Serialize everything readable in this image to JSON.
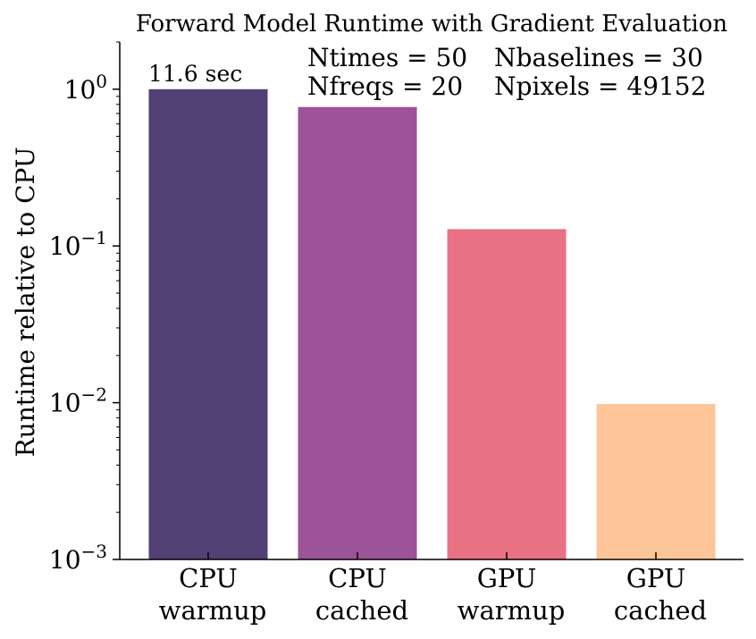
{
  "chart_data": {
    "type": "bar",
    "title": "Forward Model Runtime with Gradient Evaluation",
    "ylabel": "Runtime relative to CPU",
    "xlabel": "",
    "yscale": "log",
    "ylim": [
      0.001,
      2.0
    ],
    "categories": [
      [
        "CPU",
        "warmup"
      ],
      [
        "CPU",
        "cached"
      ],
      [
        "GPU",
        "warmup"
      ],
      [
        "GPU",
        "cached"
      ]
    ],
    "values": [
      1.0,
      0.77,
      0.128,
      0.0098
    ],
    "colors": [
      "#524174",
      "#9c5397",
      "#e87183",
      "#fdc598"
    ],
    "yticks": [
      {
        "value": 1,
        "base": "10",
        "exp": "0"
      },
      {
        "value": 0.1,
        "base": "10",
        "exp": "−1"
      },
      {
        "value": 0.01,
        "base": "10",
        "exp": "−2"
      },
      {
        "value": 0.001,
        "base": "10",
        "exp": "−3"
      }
    ],
    "bar_annotation": {
      "bar_index": 0,
      "text": "11.6 sec"
    },
    "annotations": [
      "Ntimes = 50",
      "Nbaselines = 30",
      "Nfreqs = 20",
      "Npixels = 49152"
    ],
    "grid": false
  }
}
